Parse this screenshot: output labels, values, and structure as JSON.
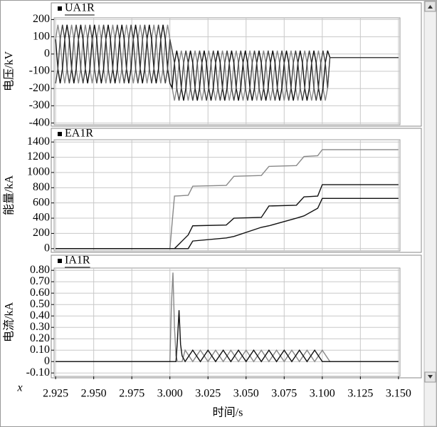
{
  "chart_data": [
    {
      "type": "line",
      "title": "UA1R",
      "ylabel": "电压/kV",
      "grid": true,
      "ylim": [
        -410,
        210
      ],
      "yticks": [
        200,
        100,
        0,
        -100,
        -200,
        -300,
        -400
      ],
      "x": [
        2.925,
        2.9265,
        2.928,
        2.9295,
        2.931,
        2.9325,
        2.934,
        2.9355,
        2.937,
        2.9385,
        2.94,
        2.9415,
        2.943,
        2.9445,
        2.946,
        2.9475,
        2.949,
        2.9505,
        2.952,
        2.9535,
        2.955,
        2.9565,
        2.958,
        2.9595,
        2.961,
        2.9625,
        2.964,
        2.9655,
        2.967,
        2.9685,
        2.97,
        2.9715,
        2.973,
        2.9745,
        2.976,
        2.9775,
        2.979,
        2.9805,
        2.982,
        2.9835,
        2.985,
        2.9865,
        2.988,
        2.9895,
        2.991,
        2.9925,
        2.994,
        2.9955,
        2.997,
        2.9985,
        3.0,
        3.0015,
        3.003,
        3.0045,
        3.006,
        3.0075,
        3.009,
        3.0105,
        3.012,
        3.0135,
        3.015,
        3.0165,
        3.018,
        3.0195,
        3.021,
        3.0225,
        3.024,
        3.0255,
        3.027,
        3.0285,
        3.03,
        3.0315,
        3.033,
        3.0345,
        3.036,
        3.0375,
        3.039,
        3.0405,
        3.042,
        3.0435,
        3.045,
        3.0465,
        3.048,
        3.0495,
        3.051,
        3.0525,
        3.054,
        3.0555,
        3.057,
        3.0585,
        3.06,
        3.0615,
        3.063,
        3.0645,
        3.066,
        3.0675,
        3.069,
        3.0705,
        3.072,
        3.0735,
        3.075,
        3.0765,
        3.078,
        3.0795,
        3.081,
        3.0825,
        3.084,
        3.0855,
        3.087,
        3.0885,
        3.09,
        3.0915,
        3.093,
        3.0945,
        3.096,
        3.0975,
        3.099,
        3.1005,
        3.102,
        3.1035,
        3.105,
        3.1065,
        3.108,
        3.15
      ],
      "series": [
        {
          "color": "#888888",
          "values": [
            85,
            170,
            85,
            -85,
            -170,
            -85,
            85,
            170,
            85,
            -85,
            -170,
            -85,
            85,
            170,
            85,
            -85,
            -170,
            -85,
            85,
            170,
            85,
            -85,
            -170,
            -85,
            85,
            170,
            85,
            -85,
            -170,
            -85,
            85,
            170,
            85,
            -85,
            -170,
            -85,
            85,
            170,
            85,
            -85,
            -170,
            -85,
            85,
            170,
            85,
            -85,
            -170,
            -85,
            85,
            170,
            85,
            -197,
            -270,
            -197,
            -52,
            20,
            -52,
            -197,
            -270,
            -197,
            -52,
            20,
            -52,
            -197,
            -270,
            -197,
            -52,
            20,
            -52,
            -197,
            -270,
            -197,
            -52,
            20,
            -52,
            -197,
            -270,
            -197,
            -52,
            20,
            -52,
            -197,
            -270,
            -197,
            -52,
            20,
            -52,
            -197,
            -270,
            -197,
            -52,
            20,
            -52,
            -197,
            -270,
            -197,
            -52,
            20,
            -52,
            -197,
            -270,
            -197,
            -52,
            20,
            -52,
            -197,
            -270,
            -197,
            -52,
            20,
            -52,
            -197,
            -270,
            -197,
            -52,
            20,
            -52,
            -197,
            -270,
            -197,
            -20,
            -20,
            -20,
            -20
          ]
        },
        {
          "color": "#111111",
          "values": [
            85,
            -85,
            -170,
            -85,
            85,
            170,
            85,
            -85,
            -170,
            -85,
            85,
            170,
            85,
            -85,
            -170,
            -85,
            85,
            170,
            85,
            -85,
            -170,
            -85,
            85,
            170,
            85,
            -85,
            -170,
            -85,
            85,
            170,
            85,
            -85,
            -170,
            -85,
            85,
            170,
            85,
            -85,
            -170,
            -85,
            85,
            170,
            85,
            -85,
            -170,
            -85,
            85,
            170,
            85,
            -85,
            -170,
            -197,
            -52,
            20,
            -52,
            -197,
            -270,
            -197,
            -52,
            20,
            -52,
            -197,
            -270,
            -197,
            -52,
            20,
            -52,
            -197,
            -270,
            -197,
            -52,
            20,
            -52,
            -197,
            -270,
            -197,
            -52,
            20,
            -52,
            -197,
            -270,
            -197,
            -52,
            20,
            -52,
            -197,
            -270,
            -197,
            -52,
            20,
            -52,
            -197,
            -270,
            -197,
            -52,
            20,
            -52,
            -197,
            -270,
            -197,
            -52,
            20,
            -52,
            -197,
            -270,
            -197,
            -52,
            20,
            -52,
            -197,
            -270,
            -197,
            -52,
            20,
            -52,
            -197,
            -270,
            -197,
            -52,
            20,
            -20,
            -20,
            -20,
            -20
          ]
        },
        {
          "color": "#444444",
          "values": [
            -170,
            -85,
            85,
            170,
            85,
            -85,
            -170,
            -85,
            85,
            170,
            85,
            -85,
            -170,
            -85,
            85,
            170,
            85,
            -85,
            -170,
            -85,
            85,
            170,
            85,
            -85,
            -170,
            -85,
            85,
            170,
            85,
            -85,
            -170,
            -85,
            85,
            170,
            85,
            -85,
            -170,
            -85,
            85,
            170,
            85,
            -85,
            -170,
            -85,
            85,
            170,
            85,
            -85,
            -170,
            -85,
            85,
            20,
            -52,
            -197,
            -270,
            -197,
            -52,
            20,
            -52,
            -197,
            -270,
            -197,
            -52,
            20,
            -52,
            -197,
            -270,
            -197,
            -52,
            20,
            -52,
            -197,
            -270,
            -197,
            -52,
            20,
            -52,
            -197,
            -270,
            -197,
            -52,
            20,
            -52,
            -197,
            -270,
            -197,
            -52,
            20,
            -52,
            -197,
            -270,
            -197,
            -52,
            20,
            -52,
            -197,
            -270,
            -197,
            -52,
            20,
            -52,
            -197,
            -270,
            -197,
            -52,
            20,
            -52,
            -197,
            -270,
            -197,
            -52,
            20,
            -52,
            -197,
            -270,
            -197,
            -52,
            20,
            -52,
            -197,
            -20,
            -20,
            -20,
            -20
          ]
        }
      ]
    },
    {
      "type": "line",
      "title": "EA1R",
      "ylabel": "能量/kA",
      "grid": true,
      "ylim": [
        -30,
        1430
      ],
      "yticks": [
        1400,
        1200,
        1000,
        800,
        600,
        400,
        200,
        0
      ],
      "x": [
        2.925,
        3.0,
        3.003,
        3.012,
        3.015,
        3.037,
        3.042,
        3.06,
        3.065,
        3.083,
        3.088,
        3.097,
        3.1,
        3.15
      ],
      "series": [
        {
          "color": "#888888",
          "values": [
            0,
            0,
            690,
            700,
            820,
            830,
            950,
            960,
            1080,
            1090,
            1210,
            1220,
            1300,
            1300
          ]
        },
        {
          "color": "#111111",
          "values": [
            0,
            0,
            0,
            180,
            300,
            310,
            400,
            410,
            560,
            570,
            680,
            690,
            840,
            840
          ]
        },
        {
          "color": "#111111",
          "values": [
            0,
            0,
            0,
            0,
            100,
            140,
            160,
            280,
            300,
            400,
            430,
            530,
            660,
            660
          ]
        }
      ]
    },
    {
      "type": "line",
      "title": "IA1R",
      "ylabel": "电流/kA",
      "grid": true,
      "ylim": [
        -0.13,
        0.82
      ],
      "yticks": [
        {
          "value": 0.8,
          "label": "0.80"
        },
        {
          "value": 0.7,
          "label": "0.70"
        },
        {
          "value": 0.6,
          "label": "0.60"
        },
        {
          "value": 0.5,
          "label": "0.50"
        },
        {
          "value": 0.4,
          "label": "0.40"
        },
        {
          "value": 0.3,
          "label": "0.30"
        },
        {
          "value": 0.2,
          "label": "0.20"
        },
        {
          "value": 0.1,
          "label": "0.10"
        },
        0,
        {
          "value": -0.1,
          "label": "-0.10"
        }
      ],
      "xlim": [
        2.924,
        3.151
      ],
      "xticks": [
        2.925,
        {
          "value": 2.95,
          "label": "2.950"
        },
        2.975,
        {
          "value": 3.0,
          "label": "3.000"
        },
        3.025,
        {
          "value": 3.05,
          "label": "3.050"
        },
        3.075,
        {
          "value": 3.1,
          "label": "3.100"
        },
        3.125,
        {
          "value": 3.15,
          "label": "3.150"
        }
      ],
      "xlabel": "时间/s",
      "corner_label": "x",
      "x": [
        2.925,
        3.0,
        3.001,
        3.002,
        3.003,
        3.004,
        3.005,
        3.006,
        3.007,
        3.008,
        3.01,
        3.015,
        3.02,
        3.025,
        3.03,
        3.035,
        3.04,
        3.045,
        3.05,
        3.055,
        3.06,
        3.065,
        3.07,
        3.075,
        3.08,
        3.085,
        3.09,
        3.095,
        3.1,
        3.105,
        3.15
      ],
      "series": [
        {
          "color": "#888888",
          "values": [
            0,
            0,
            0.5,
            0.78,
            0.3,
            0.05,
            0,
            0,
            0,
            0,
            0.1,
            0,
            0.1,
            0,
            0.1,
            0,
            0.1,
            0,
            0.1,
            0,
            0.1,
            0,
            0.1,
            0,
            0.1,
            0,
            0.1,
            0,
            0.1,
            0,
            0
          ]
        },
        {
          "color": "#111111",
          "values": [
            0,
            0,
            0,
            0,
            0,
            0,
            0.2,
            0.45,
            0.15,
            0.05,
            0,
            0.1,
            0,
            0.1,
            0,
            0.1,
            0,
            0.1,
            0,
            0.1,
            0,
            0.1,
            0,
            0.1,
            0,
            0.1,
            0,
            0.1,
            0,
            0,
            0
          ]
        }
      ]
    }
  ]
}
